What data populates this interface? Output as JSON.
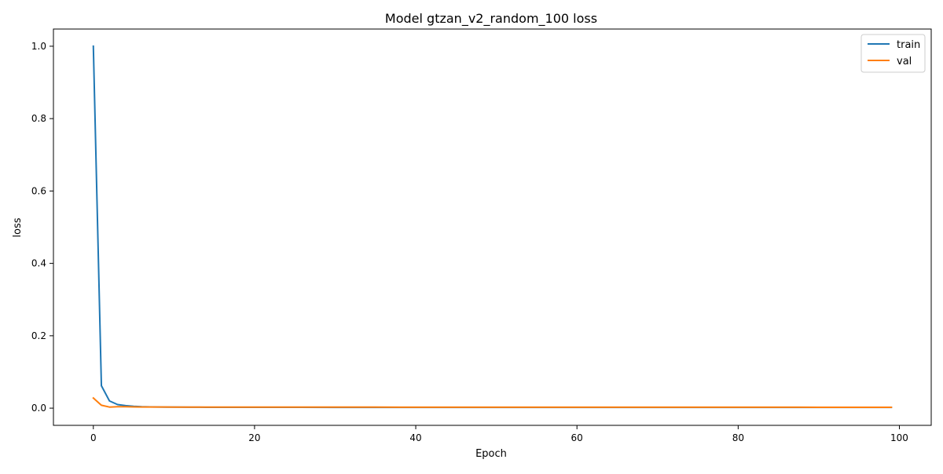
{
  "chart_data": {
    "type": "line",
    "title": "Model gtzan_v2_random_100 loss",
    "xlabel": "Epoch",
    "ylabel": "loss",
    "xlim": [
      -4.95,
      103.95
    ],
    "ylim": [
      -0.0475,
      1.0475
    ],
    "xticks": [
      0,
      20,
      40,
      60,
      80,
      100
    ],
    "xtick_labels": [
      "0",
      "20",
      "40",
      "60",
      "80",
      "100"
    ],
    "yticks": [
      0.0,
      0.2,
      0.4,
      0.6,
      0.8,
      1.0
    ],
    "ytick_labels": [
      "0.0",
      "0.2",
      "0.4",
      "0.6",
      "0.8",
      "1.0"
    ],
    "grid": false,
    "legend_position": "top-right",
    "series": [
      {
        "name": "train",
        "color": "#1f77b4",
        "x": [
          0,
          1,
          2,
          3,
          4,
          5,
          6,
          7,
          8,
          9,
          10,
          12,
          14,
          16,
          18,
          20,
          25,
          30,
          35,
          40,
          45,
          50,
          55,
          60,
          65,
          70,
          75,
          80,
          85,
          90,
          95,
          99
        ],
        "y": [
          1.0,
          0.062,
          0.02,
          0.01,
          0.007,
          0.005,
          0.004,
          0.0035,
          0.0032,
          0.003,
          0.0028,
          0.0026,
          0.0025,
          0.0024,
          0.0024,
          0.0023,
          0.0023,
          0.0022,
          0.0022,
          0.0022,
          0.0022,
          0.0021,
          0.0021,
          0.0021,
          0.0021,
          0.0021,
          0.0021,
          0.002,
          0.002,
          0.002,
          0.002,
          0.002
        ]
      },
      {
        "name": "val",
        "color": "#ff7f0e",
        "x": [
          0,
          1,
          2,
          3,
          4,
          5,
          6,
          7,
          8,
          9,
          10,
          12,
          14,
          16,
          18,
          20,
          25,
          30,
          35,
          40,
          45,
          50,
          55,
          60,
          65,
          70,
          75,
          80,
          85,
          90,
          95,
          99
        ],
        "y": [
          0.028,
          0.008,
          0.003,
          0.004,
          0.004,
          0.0035,
          0.0033,
          0.0032,
          0.0032,
          0.0031,
          0.003,
          0.003,
          0.003,
          0.003,
          0.003,
          0.0029,
          0.0028,
          0.0028,
          0.0028,
          0.0027,
          0.0027,
          0.0027,
          0.0027,
          0.0027,
          0.0026,
          0.0026,
          0.0026,
          0.0026,
          0.0026,
          0.0025,
          0.0025,
          0.0025
        ]
      }
    ]
  }
}
